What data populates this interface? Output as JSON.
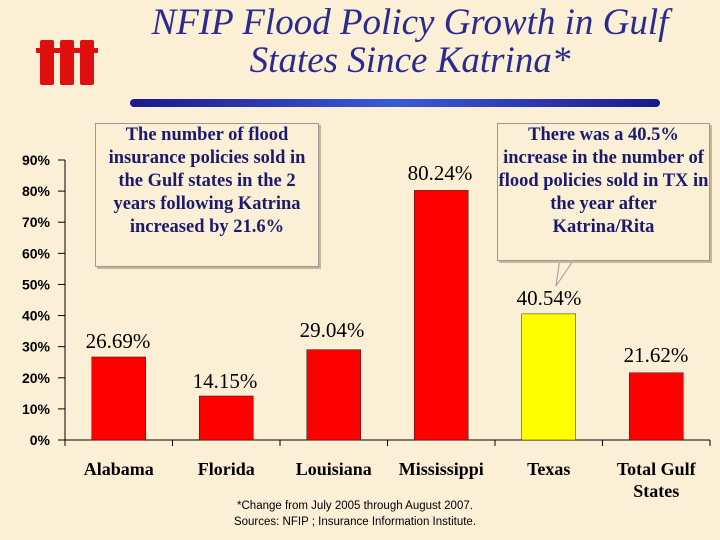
{
  "chart_data": {
    "type": "bar",
    "title": "NFIP Flood Policy Growth in Gulf States Since Katrina*",
    "categories": [
      "Alabama",
      "Florida",
      "Louisiana",
      "Mississippi",
      "Texas",
      "Total Gulf States"
    ],
    "values": [
      26.69,
      14.15,
      29.04,
      80.24,
      40.54,
      21.62
    ],
    "value_labels": [
      "26.69%",
      "14.15%",
      "29.04%",
      "80.24%",
      "40.54%",
      "21.62%"
    ],
    "colors": [
      "#ff0000",
      "#ff0000",
      "#ff0000",
      "#ff0000",
      "#ffff00",
      "#ff0000"
    ],
    "ylim": [
      0,
      90
    ],
    "yticks": [
      {
        "value": 0,
        "label": "0%"
      },
      {
        "value": 10,
        "label": "10%"
      },
      {
        "value": 20,
        "label": "20%"
      },
      {
        "value": 30,
        "label": "30%"
      },
      {
        "value": 40,
        "label": "40%"
      },
      {
        "value": 50,
        "label": "50%"
      },
      {
        "value": 60,
        "label": "60%"
      },
      {
        "value": 70,
        "label": "70%"
      },
      {
        "value": 80,
        "label": "80%"
      },
      {
        "value": 90,
        "label": "90%"
      }
    ],
    "annotations": [
      "The number of flood insurance policies sold in the Gulf states in the 2 years following Katrina increased by 21.6%",
      "There was a 40.5% increase in the number of flood policies sold in TX in the year after Katrina/Rita"
    ],
    "footnote": "*Change from July 2005 through August 2007.",
    "source": "Sources: NFIP ; Insurance Information Institute."
  }
}
